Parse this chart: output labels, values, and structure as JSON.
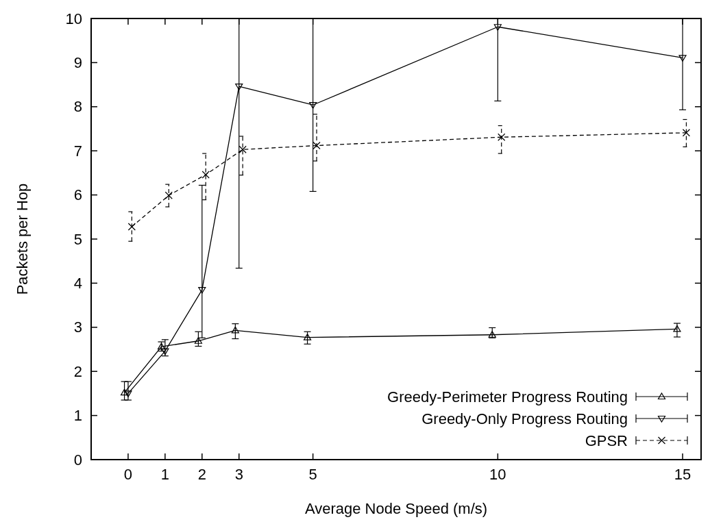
{
  "chart_data": {
    "type": "line",
    "xlabel": "Average Node Speed (m/s)",
    "ylabel": "Packets per Hop",
    "xlim": [
      -1,
      15.5
    ],
    "xticks": [
      0,
      1,
      2,
      3,
      5,
      10,
      15
    ],
    "ylim": [
      0,
      10
    ],
    "yticks": [
      0,
      1,
      2,
      3,
      4,
      5,
      6,
      7,
      8,
      9,
      10
    ],
    "grid": false,
    "legend": "bottom right",
    "series": [
      {
        "name": "Greedy-Perimeter Progress Routing",
        "color": "#000000",
        "marker": "triangle",
        "line_style": "solid",
        "x": [
          -0.1,
          0.9,
          1.9,
          2.9,
          4.85,
          9.85,
          14.85
        ],
        "values": [
          1.52,
          2.56,
          2.69,
          2.93,
          2.77,
          2.83,
          2.96
        ],
        "errors": [
          [
            1.35,
            1.77
          ],
          [
            2.46,
            2.67
          ],
          [
            2.57,
            2.9
          ],
          [
            2.74,
            3.08
          ],
          [
            2.62,
            2.9
          ],
          [
            2.76,
            2.99
          ],
          [
            2.78,
            3.09
          ]
        ]
      },
      {
        "name": "Greedy-Only Progress Routing",
        "color": "#000000",
        "marker": "triangle-down",
        "line_style": "solid",
        "x": [
          0,
          1,
          2,
          3,
          5,
          10,
          15
        ],
        "values": [
          1.5,
          2.46,
          3.85,
          8.46,
          8.04,
          9.81,
          9.11
        ],
        "errors": [
          [
            1.35,
            1.77
          ],
          [
            2.35,
            2.72
          ],
          [
            2.76,
            6.22
          ],
          [
            4.34,
            10
          ],
          [
            6.08,
            10
          ],
          [
            8.13,
            10
          ],
          [
            7.93,
            10
          ]
        ]
      },
      {
        "name": "GPSR",
        "color": "#000000",
        "marker": "cross",
        "line_style": "dashed",
        "x": [
          0.1,
          1.1,
          2.1,
          3.1,
          5.1,
          10.1,
          15.1
        ],
        "values": [
          5.28,
          5.99,
          6.46,
          7.03,
          7.12,
          7.31,
          7.41
        ],
        "errors": [
          [
            4.95,
            5.62
          ],
          [
            5.73,
            6.24
          ],
          [
            5.89,
            6.94
          ],
          [
            6.45,
            7.33
          ],
          [
            6.77,
            7.83
          ],
          [
            6.94,
            7.57
          ],
          [
            7.09,
            7.71
          ]
        ]
      }
    ]
  }
}
